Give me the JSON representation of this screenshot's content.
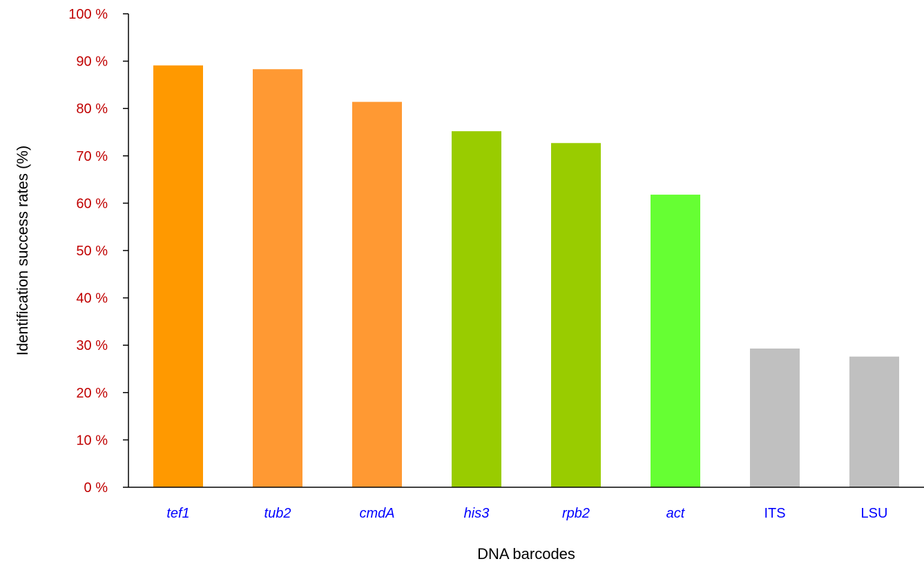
{
  "chart_data": {
    "type": "bar",
    "title": "",
    "xlabel": "DNA barcodes",
    "ylabel": "Identification success rates (%)",
    "ylim": [
      0,
      100
    ],
    "yticks": [
      0,
      10,
      20,
      30,
      40,
      50,
      60,
      70,
      80,
      90,
      100
    ],
    "ytick_labels": [
      "0 %",
      "10 %",
      "20 %",
      "30 %",
      "40 %",
      "50 %",
      "60 %",
      "70 %",
      "80 %",
      "90 %",
      "100 %"
    ],
    "categories": [
      "tef1",
      "tub2",
      "cmdA",
      "his3",
      "rpb2",
      "act",
      "ITS",
      "LSU"
    ],
    "category_italic": [
      true,
      true,
      true,
      true,
      true,
      true,
      false,
      false
    ],
    "values": [
      89.1,
      88.3,
      81.4,
      75.2,
      72.7,
      61.8,
      29.3,
      27.6
    ],
    "bar_colors": [
      "#FF9900",
      "#FF9933",
      "#FF9933",
      "#99CC00",
      "#99CC00",
      "#66FF33",
      "#C0C0C0",
      "#C0C0C0"
    ],
    "tick_label_color": "#C00000",
    "category_label_color": "#0000FF",
    "axis_color": "#000000",
    "grid": false,
    "legend": "none"
  }
}
